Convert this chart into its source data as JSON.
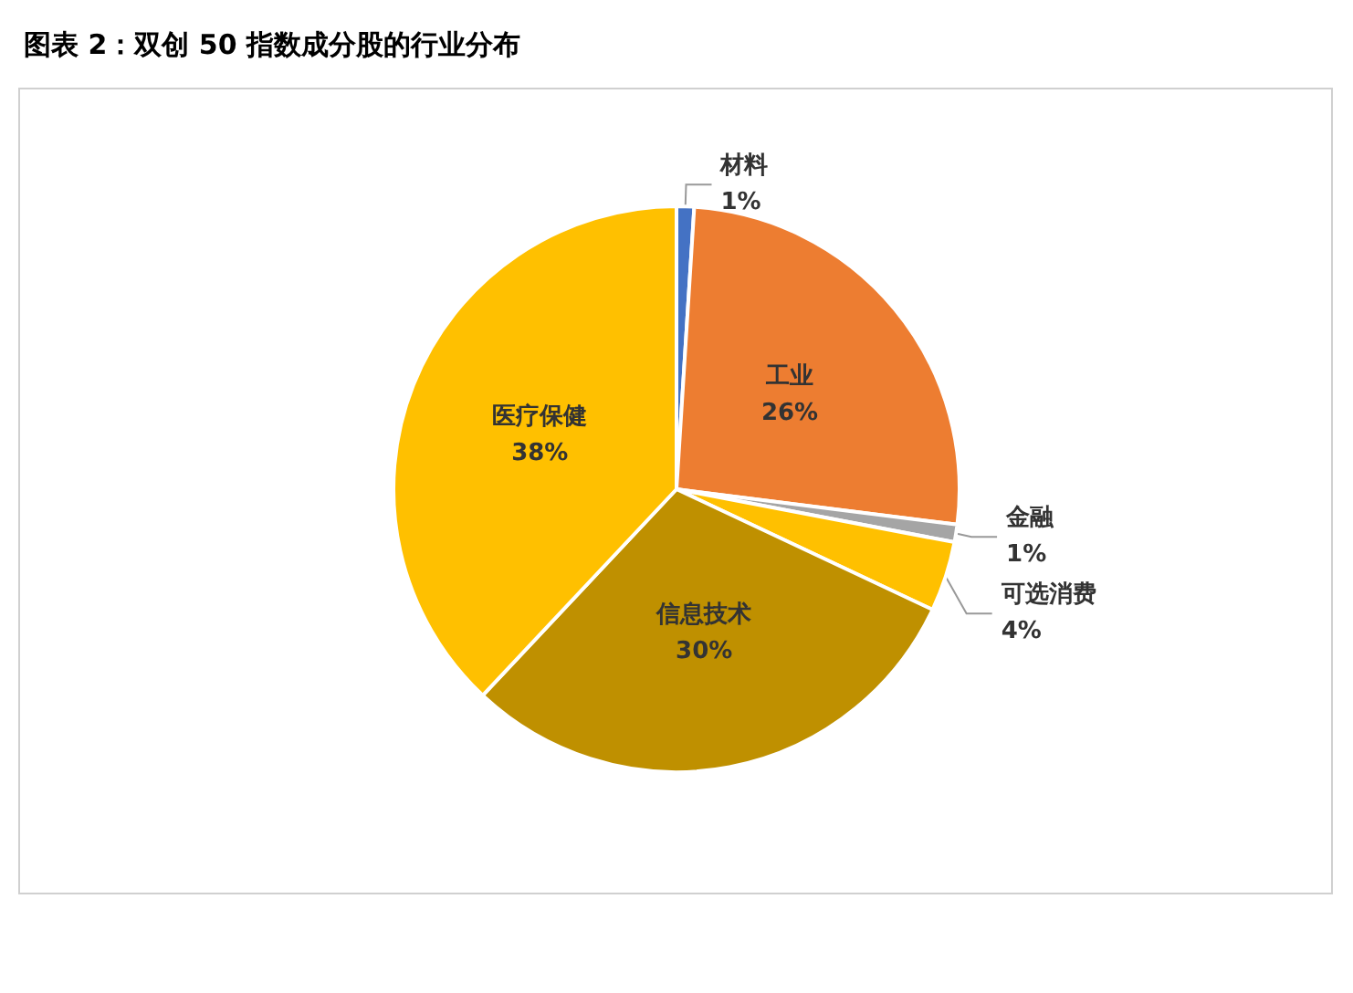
{
  "chart_data": {
    "type": "pie",
    "title": "图表 2：双创 50 指数成分股的行业分布",
    "categories": [
      "材料",
      "工业",
      "金融",
      "可选消费",
      "信息技术",
      "医疗保健"
    ],
    "values": [
      1,
      26,
      1,
      4,
      30,
      38
    ],
    "colors": [
      "#4472c4",
      "#ed7d31",
      "#a5a5a5",
      "#ffc000",
      "#bf9000",
      "#ffc000"
    ],
    "value_labels": [
      "1%",
      "26%",
      "1%",
      "4%",
      "30%",
      "38%"
    ],
    "legend": false
  }
}
